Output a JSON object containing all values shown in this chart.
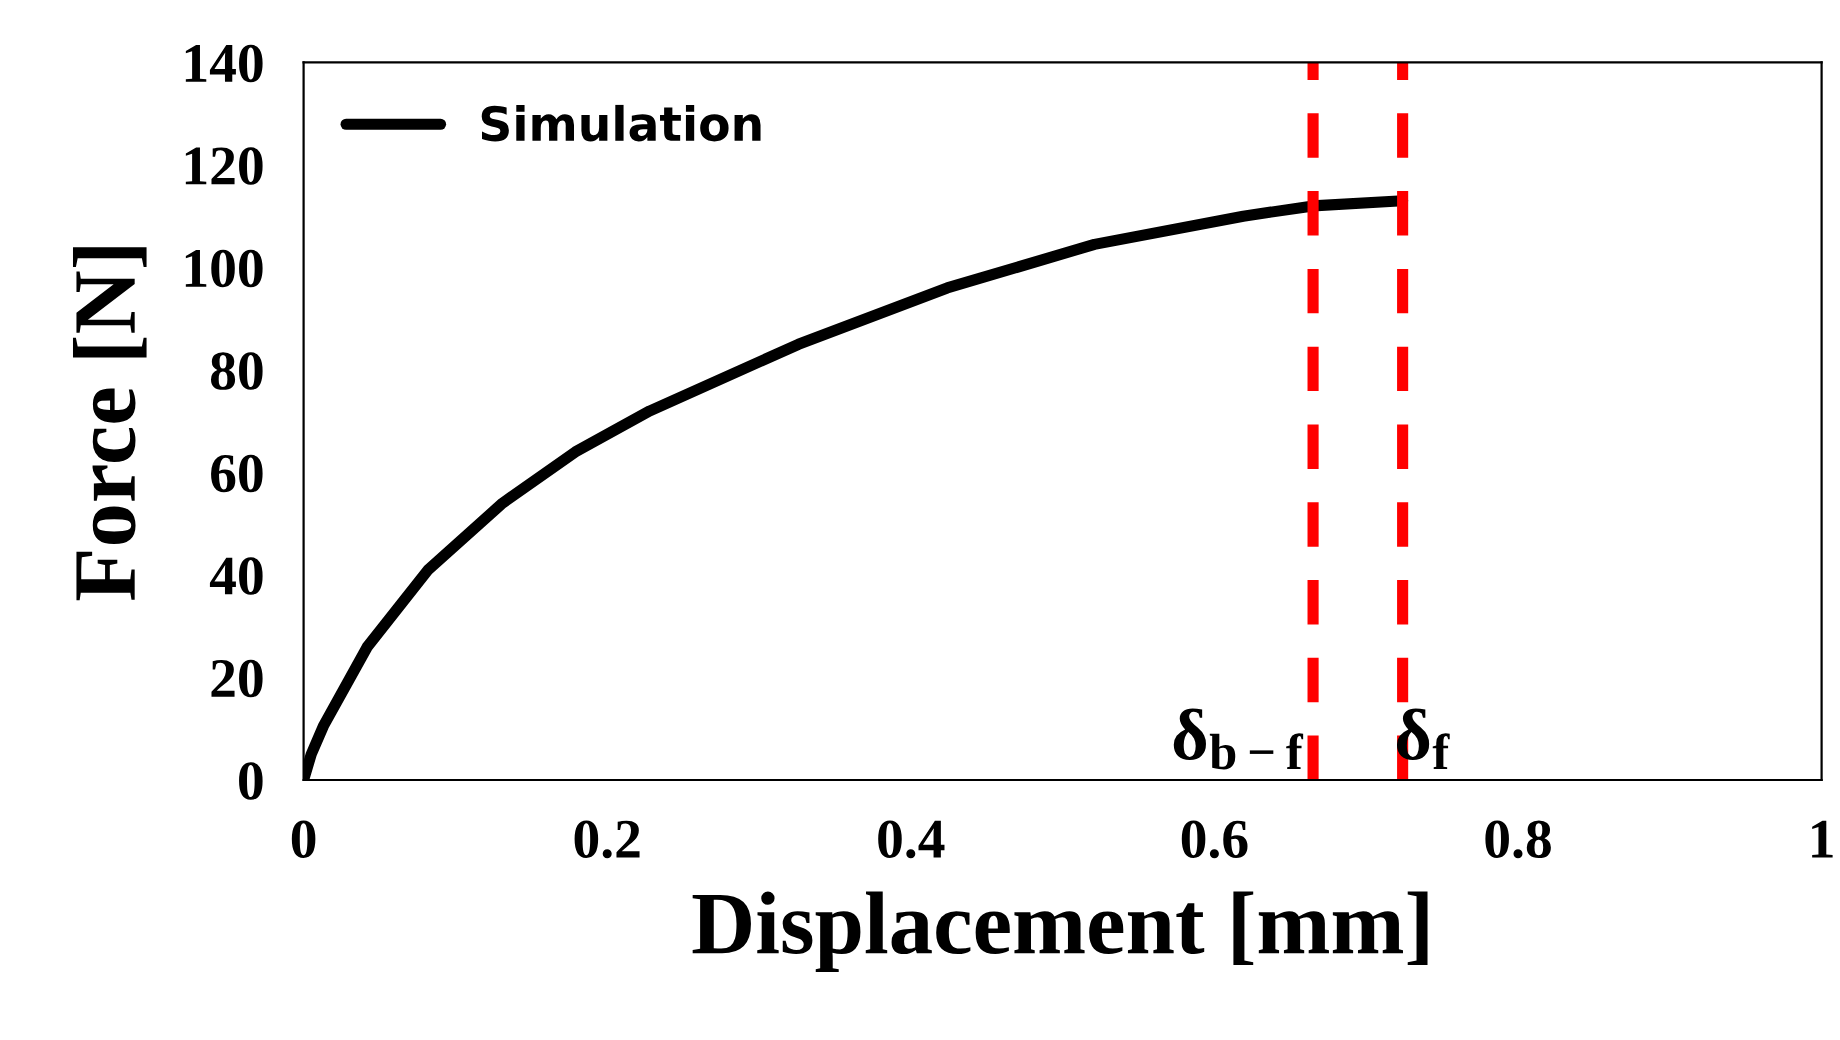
{
  "chart_data": {
    "type": "line",
    "xlabel": "Displacement [mm]",
    "ylabel": "Force [N]",
    "series": [
      {
        "name": "Simulation",
        "color": "#000000",
        "x": [
          0,
          0.005,
          0.013,
          0.042,
          0.082,
          0.131,
          0.179,
          0.228,
          0.326,
          0.424,
          0.521,
          0.619,
          0.665,
          0.724
        ],
        "values": [
          0,
          5,
          10.5,
          26,
          41,
          54,
          64,
          72,
          85,
          96,
          104.5,
          110,
          112,
          113
        ]
      }
    ],
    "ref_lines": [
      {
        "axis": "x",
        "value": 0.665,
        "label": "δ$_{b−f}$",
        "color": "#ff0000",
        "line_style": "dashed"
      },
      {
        "axis": "x",
        "value": 0.724,
        "label": "δ$_{f}$",
        "color": "#ff0000",
        "line_style": "dashed"
      }
    ],
    "xlim": [
      0,
      1
    ],
    "xticks": [
      0,
      0.2,
      0.4,
      0.6,
      0.8,
      1
    ],
    "ylim": [
      0,
      140
    ],
    "yticks": [
      0,
      20,
      40,
      60,
      80,
      100,
      120,
      140
    ],
    "grid": false,
    "legend": "top left",
    "marker": "none",
    "line_style": "solid"
  }
}
